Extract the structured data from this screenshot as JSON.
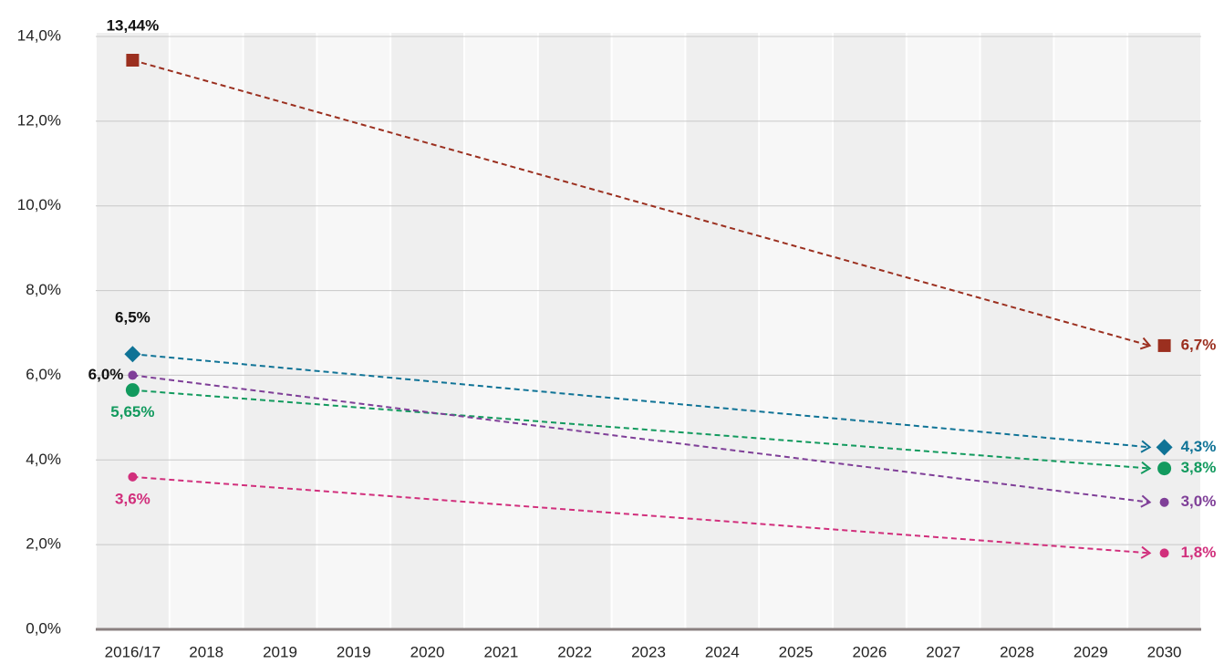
{
  "chart_data": {
    "type": "line",
    "categories": [
      "2016/17",
      "2018",
      "2019",
      "2019",
      "2020",
      "2021",
      "2022",
      "2023",
      "2024",
      "2025",
      "2026",
      "2027",
      "2028",
      "2029",
      "2030"
    ],
    "ylim": [
      0,
      14
    ],
    "yticks": [
      {
        "value": 0,
        "label": "0,0%"
      },
      {
        "value": 2,
        "label": "2,0%"
      },
      {
        "value": 4,
        "label": "4,0%"
      },
      {
        "value": 6,
        "label": "6,0%"
      },
      {
        "value": 8,
        "label": "8,0%"
      },
      {
        "value": 10,
        "label": "10,0%"
      },
      {
        "value": 12,
        "label": "12,0%"
      },
      {
        "value": 14,
        "label": "14,0%"
      }
    ],
    "grid": true,
    "series": [
      {
        "color": "#9b2f1f",
        "marker": "square",
        "first_label_color": "#111",
        "values": [
          13.44,
          null,
          null,
          null,
          null,
          null,
          null,
          null,
          null,
          null,
          null,
          null,
          null,
          null,
          6.7
        ],
        "value_labels": [
          "13,44%",
          null,
          null,
          null,
          null,
          null,
          null,
          null,
          null,
          null,
          null,
          null,
          null,
          null,
          "6,7%"
        ]
      },
      {
        "color": "#0f7396",
        "marker": "diamond",
        "first_label_color": "#111",
        "values": [
          6.5,
          null,
          null,
          null,
          null,
          null,
          null,
          null,
          null,
          null,
          null,
          null,
          null,
          null,
          4.3
        ],
        "value_labels": [
          "6,5%",
          null,
          null,
          null,
          null,
          null,
          null,
          null,
          null,
          null,
          null,
          null,
          null,
          null,
          "4,3%"
        ]
      },
      {
        "color": "#129a5e",
        "marker": "circle",
        "first_label_color": "#129a5e",
        "values": [
          5.65,
          null,
          null,
          null,
          null,
          null,
          null,
          null,
          null,
          null,
          null,
          null,
          null,
          null,
          3.8
        ],
        "value_labels": [
          "5,65%",
          null,
          null,
          null,
          null,
          null,
          null,
          null,
          null,
          null,
          null,
          null,
          null,
          null,
          "3,8%"
        ]
      },
      {
        "color": "#7f3f98",
        "marker": "dot",
        "first_label_color": "#111",
        "values": [
          6.0,
          null,
          null,
          null,
          null,
          null,
          null,
          null,
          null,
          null,
          null,
          null,
          null,
          null,
          3.0
        ],
        "value_labels": [
          "6,0%",
          null,
          null,
          null,
          null,
          null,
          null,
          null,
          null,
          null,
          null,
          null,
          null,
          null,
          "3,0%"
        ]
      },
      {
        "color": "#d12f7c",
        "marker": "dot",
        "first_label_color": "#d12f7c",
        "values": [
          3.6,
          null,
          null,
          null,
          null,
          null,
          null,
          null,
          null,
          null,
          null,
          null,
          null,
          null,
          1.8
        ],
        "value_labels": [
          "3,6%",
          null,
          null,
          null,
          null,
          null,
          null,
          null,
          null,
          null,
          null,
          null,
          null,
          null,
          "1,8%"
        ]
      }
    ]
  }
}
